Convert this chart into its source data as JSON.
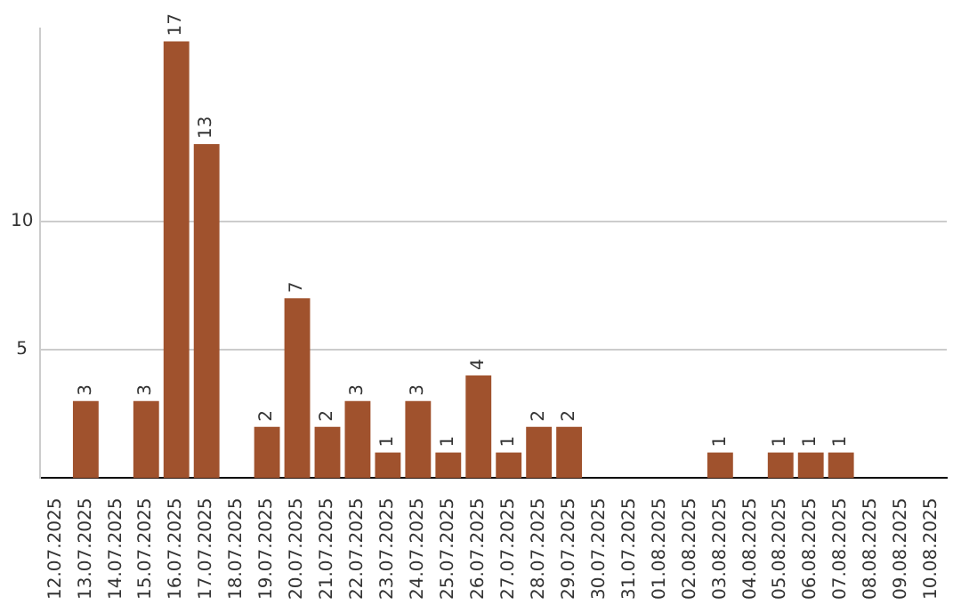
{
  "chart_data": {
    "type": "bar",
    "categories": [
      "12.07.2025",
      "13.07.2025",
      "14.07.2025",
      "15.07.2025",
      "16.07.2025",
      "17.07.2025",
      "18.07.2025",
      "19.07.2025",
      "20.07.2025",
      "21.07.2025",
      "22.07.2025",
      "23.07.2025",
      "24.07.2025",
      "25.07.2025",
      "26.07.2025",
      "27.07.2025",
      "28.07.2025",
      "29.07.2025",
      "30.07.2025",
      "31.07.2025",
      "01.08.2025",
      "02.08.2025",
      "03.08.2025",
      "04.08.2025",
      "05.08.2025",
      "06.08.2025",
      "07.08.2025",
      "08.08.2025",
      "09.08.2025",
      "10.08.2025"
    ],
    "values": [
      0,
      3,
      0,
      3,
      17,
      13,
      0,
      2,
      7,
      2,
      3,
      1,
      3,
      1,
      4,
      1,
      2,
      2,
      0,
      0,
      0,
      0,
      1,
      0,
      1,
      1,
      1,
      0,
      0,
      0
    ],
    "value_labels": [
      null,
      "3",
      null,
      "3",
      "17",
      "13",
      null,
      "2",
      "7",
      "2",
      "3",
      "1",
      "3",
      "1",
      "4",
      "1",
      "2",
      "2",
      null,
      null,
      null,
      null,
      "1",
      null,
      "1",
      "1",
      "1",
      null,
      null,
      null
    ],
    "color": "#a0522d",
    "ylim": [
      0,
      17.5
    ],
    "yticks": [
      5,
      10
    ],
    "grid": "y",
    "legend": false
  }
}
